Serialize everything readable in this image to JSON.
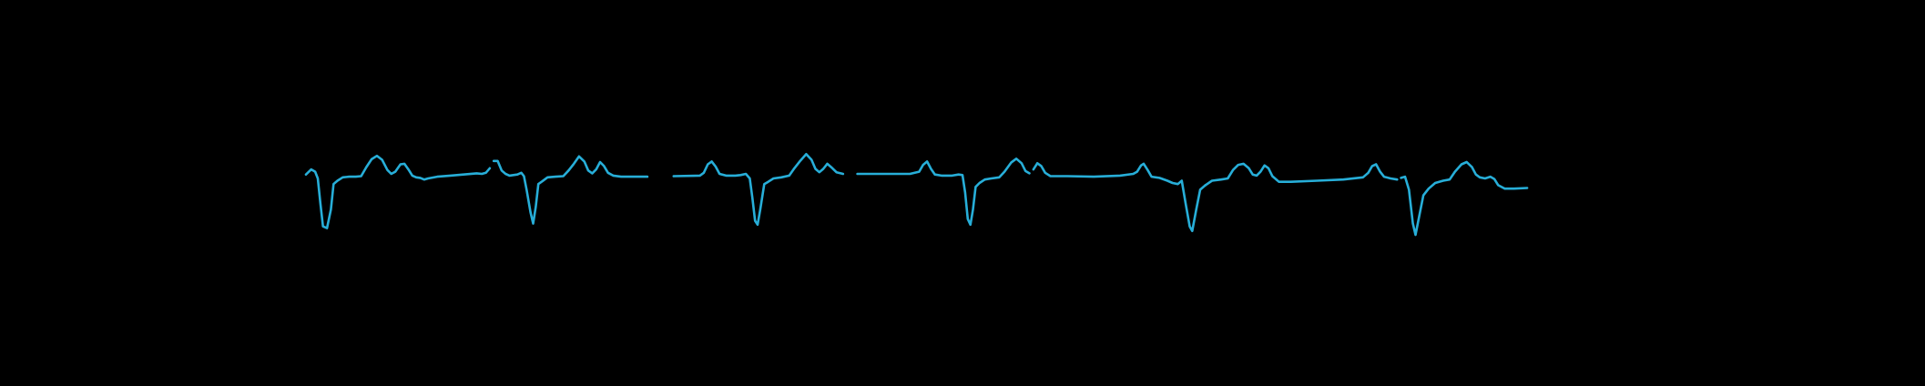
{
  "colors": {
    "background": "#000000",
    "trace": "#27aed8"
  },
  "chart_data": {
    "type": "line",
    "title": "",
    "xlabel": "",
    "ylabel": "",
    "grid": false,
    "legend": "none",
    "x_range": [
      0,
      1
    ],
    "y_range": [
      -1,
      1
    ],
    "series": [
      {
        "beats": [
          {
            "start": 0.0,
            "end": 0.141
          },
          {
            "start": 0.141,
            "end": 0.278
          },
          {
            "start": 0.278,
            "end": 0.414
          },
          {
            "start": 0.414,
            "end": 0.552
          },
          {
            "start": 0.552,
            "end": 0.685
          },
          {
            "start": 0.685,
            "end": 0.833
          },
          {
            "start": 0.833,
            "end": 1.0
          }
        ],
        "points": [
          [
            0.0,
            0.07
          ],
          [
            0.004,
            0.16
          ],
          [
            0.007,
            0.12
          ],
          [
            0.009,
            0.0
          ],
          [
            0.011,
            -0.45
          ],
          [
            0.013,
            -0.85
          ],
          [
            0.016,
            -0.88
          ],
          [
            0.019,
            -0.55
          ],
          [
            0.021,
            -0.1
          ],
          [
            0.024,
            -0.04
          ],
          [
            0.028,
            0.02
          ],
          [
            0.033,
            0.03
          ],
          [
            0.038,
            0.03
          ],
          [
            0.042,
            0.04
          ],
          [
            0.046,
            0.2
          ],
          [
            0.05,
            0.34
          ],
          [
            0.054,
            0.4
          ],
          [
            0.058,
            0.33
          ],
          [
            0.062,
            0.15
          ],
          [
            0.065,
            0.08
          ],
          [
            0.068,
            0.12
          ],
          [
            0.072,
            0.25
          ],
          [
            0.075,
            0.26
          ],
          [
            0.078,
            0.16
          ],
          [
            0.081,
            0.05
          ],
          [
            0.084,
            0.02
          ],
          [
            0.087,
            0.01
          ],
          [
            0.09,
            -0.02
          ],
          [
            0.093,
            0.0
          ],
          [
            0.1,
            0.03
          ],
          [
            0.11,
            0.05
          ],
          [
            0.12,
            0.07
          ],
          [
            0.13,
            0.09
          ],
          [
            0.134,
            0.08
          ],
          [
            0.137,
            0.1
          ],
          [
            0.14,
            0.18
          ],
          [
            0.143,
            0.31
          ],
          [
            0.146,
            0.31
          ],
          [
            0.149,
            0.14
          ],
          [
            0.152,
            0.08
          ],
          [
            0.155,
            0.05
          ],
          [
            0.158,
            0.06
          ],
          [
            0.161,
            0.07
          ],
          [
            0.164,
            0.1
          ],
          [
            0.166,
            0.04
          ],
          [
            0.168,
            -0.2
          ],
          [
            0.171,
            -0.6
          ],
          [
            0.173,
            -0.8
          ],
          [
            0.175,
            -0.5
          ],
          [
            0.177,
            -0.1
          ],
          [
            0.18,
            -0.05
          ],
          [
            0.184,
            0.02
          ],
          [
            0.19,
            0.03
          ],
          [
            0.196,
            0.04
          ],
          [
            0.2,
            0.14
          ],
          [
            0.204,
            0.26
          ],
          [
            0.208,
            0.39
          ],
          [
            0.212,
            0.3
          ],
          [
            0.215,
            0.14
          ],
          [
            0.218,
            0.09
          ],
          [
            0.221,
            0.16
          ],
          [
            0.224,
            0.29
          ],
          [
            0.227,
            0.22
          ],
          [
            0.23,
            0.1
          ],
          [
            0.234,
            0.05
          ],
          [
            0.24,
            0.03
          ],
          [
            0.26,
            0.03
          ],
          [
            0.28,
            0.04
          ],
          [
            0.3,
            0.05
          ],
          [
            0.303,
            0.1
          ],
          [
            0.306,
            0.25
          ],
          [
            0.309,
            0.3
          ],
          [
            0.312,
            0.21
          ],
          [
            0.315,
            0.08
          ],
          [
            0.32,
            0.05
          ],
          [
            0.327,
            0.05
          ],
          [
            0.331,
            0.06
          ],
          [
            0.335,
            0.08
          ],
          [
            0.338,
            0.0
          ],
          [
            0.34,
            -0.35
          ],
          [
            0.342,
            -0.75
          ],
          [
            0.344,
            -0.82
          ],
          [
            0.346,
            -0.55
          ],
          [
            0.349,
            -0.1
          ],
          [
            0.352,
            -0.06
          ],
          [
            0.356,
            0.0
          ],
          [
            0.362,
            0.02
          ],
          [
            0.368,
            0.05
          ],
          [
            0.372,
            0.18
          ],
          [
            0.376,
            0.3
          ],
          [
            0.381,
            0.43
          ],
          [
            0.385,
            0.33
          ],
          [
            0.388,
            0.17
          ],
          [
            0.391,
            0.11
          ],
          [
            0.394,
            0.17
          ],
          [
            0.397,
            0.26
          ],
          [
            0.4,
            0.2
          ],
          [
            0.404,
            0.11
          ],
          [
            0.409,
            0.08
          ],
          [
            0.42,
            0.08
          ],
          [
            0.44,
            0.08
          ],
          [
            0.46,
            0.08
          ],
          [
            0.467,
            0.12
          ],
          [
            0.47,
            0.24
          ],
          [
            0.473,
            0.3
          ],
          [
            0.476,
            0.17
          ],
          [
            0.479,
            0.07
          ],
          [
            0.484,
            0.05
          ],
          [
            0.492,
            0.05
          ],
          [
            0.497,
            0.07
          ],
          [
            0.5,
            0.06
          ],
          [
            0.502,
            -0.25
          ],
          [
            0.504,
            -0.72
          ],
          [
            0.506,
            -0.82
          ],
          [
            0.508,
            -0.55
          ],
          [
            0.51,
            -0.15
          ],
          [
            0.513,
            -0.08
          ],
          [
            0.517,
            -0.02
          ],
          [
            0.522,
            0.0
          ],
          [
            0.528,
            0.02
          ],
          [
            0.532,
            0.12
          ],
          [
            0.537,
            0.28
          ],
          [
            0.541,
            0.35
          ],
          [
            0.545,
            0.27
          ],
          [
            0.548,
            0.13
          ],
          [
            0.551,
            0.09
          ],
          [
            0.554,
            0.16
          ],
          [
            0.557,
            0.27
          ],
          [
            0.56,
            0.22
          ],
          [
            0.563,
            0.1
          ],
          [
            0.567,
            0.04
          ],
          [
            0.58,
            0.04
          ],
          [
            0.6,
            0.03
          ],
          [
            0.62,
            0.05
          ],
          [
            0.63,
            0.08
          ],
          [
            0.633,
            0.12
          ],
          [
            0.636,
            0.23
          ],
          [
            0.638,
            0.26
          ],
          [
            0.641,
            0.15
          ],
          [
            0.644,
            0.03
          ],
          [
            0.65,
            0.01
          ],
          [
            0.656,
            -0.04
          ],
          [
            0.66,
            -0.08
          ],
          [
            0.664,
            -0.1
          ],
          [
            0.667,
            -0.04
          ],
          [
            0.67,
            -0.45
          ],
          [
            0.673,
            -0.85
          ],
          [
            0.675,
            -0.93
          ],
          [
            0.678,
            -0.55
          ],
          [
            0.681,
            -0.2
          ],
          [
            0.685,
            -0.12
          ],
          [
            0.69,
            -0.04
          ],
          [
            0.697,
            -0.02
          ],
          [
            0.702,
            0.0
          ],
          [
            0.706,
            0.15
          ],
          [
            0.71,
            0.24
          ],
          [
            0.714,
            0.26
          ],
          [
            0.718,
            0.18
          ],
          [
            0.721,
            0.07
          ],
          [
            0.724,
            0.05
          ],
          [
            0.727,
            0.12
          ],
          [
            0.73,
            0.23
          ],
          [
            0.733,
            0.18
          ],
          [
            0.736,
            0.04
          ],
          [
            0.741,
            -0.06
          ],
          [
            0.75,
            -0.06
          ],
          [
            0.77,
            -0.04
          ],
          [
            0.79,
            -0.02
          ],
          [
            0.805,
            0.02
          ],
          [
            0.809,
            0.1
          ],
          [
            0.812,
            0.22
          ],
          [
            0.815,
            0.25
          ],
          [
            0.818,
            0.12
          ],
          [
            0.821,
            0.03
          ],
          [
            0.826,
            0.0
          ],
          [
            0.831,
            -0.02
          ],
          [
            0.834,
            0.01
          ],
          [
            0.837,
            0.03
          ],
          [
            0.84,
            -0.2
          ],
          [
            0.843,
            -0.8
          ],
          [
            0.845,
            -1.0
          ],
          [
            0.848,
            -0.65
          ],
          [
            0.851,
            -0.3
          ],
          [
            0.855,
            -0.18
          ],
          [
            0.86,
            -0.08
          ],
          [
            0.866,
            -0.04
          ],
          [
            0.871,
            -0.02
          ],
          [
            0.875,
            0.12
          ],
          [
            0.88,
            0.25
          ],
          [
            0.884,
            0.29
          ],
          [
            0.888,
            0.2
          ],
          [
            0.891,
            0.07
          ],
          [
            0.894,
            0.02
          ],
          [
            0.898,
            0.0
          ],
          [
            0.902,
            0.03
          ],
          [
            0.905,
            -0.01
          ],
          [
            0.908,
            -0.12
          ],
          [
            0.913,
            -0.18
          ],
          [
            0.92,
            -0.18
          ],
          [
            0.93,
            -0.17
          ]
        ]
      }
    ]
  }
}
